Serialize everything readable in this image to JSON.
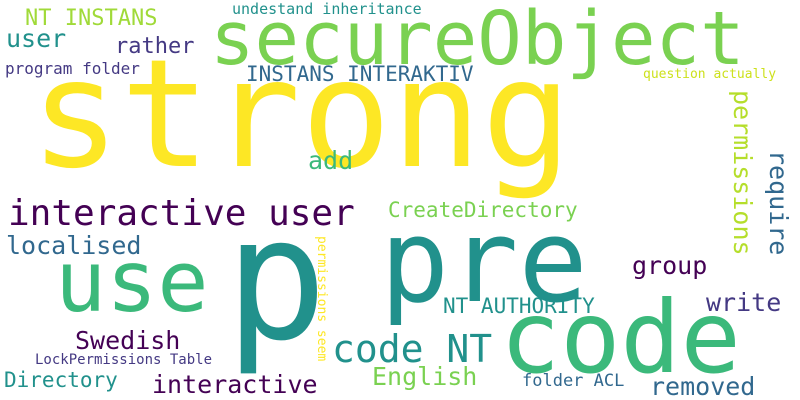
{
  "palette": {
    "yellow": "#fde725",
    "light_green": "#7ad151",
    "green": "#3bb97b",
    "teal": "#21918c",
    "blue": "#31688e",
    "indigo": "#443983",
    "purple": "#440154"
  },
  "words": [
    {
      "text": "strong",
      "color": "#fde725"
    },
    {
      "text": "p",
      "color": "#21918c"
    },
    {
      "text": "pre",
      "color": "#21918c"
    },
    {
      "text": "secureObject",
      "color": "#7ad151"
    },
    {
      "text": "code",
      "color": "#3bb97b"
    },
    {
      "text": "use",
      "color": "#3bb97b"
    },
    {
      "text": "interactive user",
      "color": "#440154"
    },
    {
      "text": "code NT",
      "color": "#21918c"
    },
    {
      "text": "NT INSTANS",
      "color": "#a0da39"
    },
    {
      "text": "user",
      "color": "#21918c"
    },
    {
      "text": "rather",
      "color": "#443983"
    },
    {
      "text": "undestand inheritance",
      "color": "#21918c"
    },
    {
      "text": "program folder",
      "color": "#443983"
    },
    {
      "text": "INSTANS INTERAKTIV",
      "color": "#31688e"
    },
    {
      "text": "question actually",
      "color": "#cde11d"
    },
    {
      "text": "add",
      "color": "#3bb97b"
    },
    {
      "text": "permissions",
      "color": "#b5de2b"
    },
    {
      "text": "require",
      "color": "#31688e"
    },
    {
      "text": "CreateDirectory",
      "color": "#7ad151"
    },
    {
      "text": "localised",
      "color": "#31688e"
    },
    {
      "text": "group",
      "color": "#440154"
    },
    {
      "text": "write",
      "color": "#443983"
    },
    {
      "text": "NT AUTHORITY",
      "color": "#21918c"
    },
    {
      "text": "Swedish",
      "color": "#440154"
    },
    {
      "text": "permissions seem",
      "color": "#fde725"
    },
    {
      "text": "LockPermissions Table",
      "color": "#443983"
    },
    {
      "text": "English",
      "color": "#7ad151"
    },
    {
      "text": "Directory",
      "color": "#21918c"
    },
    {
      "text": "interactive",
      "color": "#440154"
    },
    {
      "text": "folder ACL",
      "color": "#31688e"
    },
    {
      "text": "removed",
      "color": "#31688e"
    }
  ]
}
